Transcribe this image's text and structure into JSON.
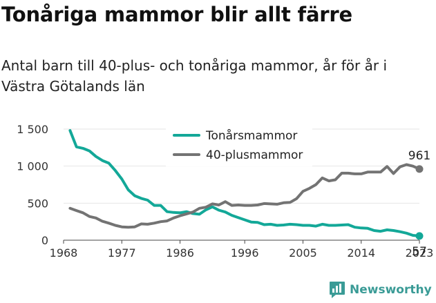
{
  "title": "Tonåriga mammor blir allt färre",
  "subtitle": "Antal barn till 40-plus- och tonåriga mammor, år för år i Västra Götalands län",
  "brand": "Newsworthy",
  "colors": {
    "teen": "#13a898",
    "forty": "#737373",
    "brand": "#3a9b96"
  },
  "chart_data": {
    "type": "line",
    "ylim": [
      0,
      1500
    ],
    "xlim": [
      1968,
      2023
    ],
    "yticks": [
      0,
      500,
      1000,
      1500
    ],
    "ytick_labels": [
      "0",
      "500",
      "1 000",
      "1 500"
    ],
    "xticks": [
      1968,
      1977,
      1986,
      1996,
      2005,
      2014,
      2023
    ],
    "xtick_labels": [
      "1968",
      "1977",
      "1986",
      "1996",
      "2005",
      "2014",
      "2023"
    ],
    "legend_placement": "top-center",
    "x": [
      1969,
      1970,
      1971,
      1972,
      1973,
      1974,
      1975,
      1976,
      1977,
      1978,
      1979,
      1980,
      1981,
      1982,
      1983,
      1984,
      1985,
      1986,
      1987,
      1988,
      1989,
      1990,
      1991,
      1992,
      1993,
      1994,
      1995,
      1996,
      1997,
      1998,
      1999,
      2000,
      2001,
      2002,
      2003,
      2004,
      2005,
      2006,
      2007,
      2008,
      2009,
      2010,
      2011,
      2012,
      2013,
      2014,
      2015,
      2016,
      2017,
      2018,
      2019,
      2020,
      2021,
      2022,
      2023
    ],
    "series": [
      {
        "name": "Tonårsmammor",
        "color_key": "teen",
        "end_label": "57",
        "values": [
          1480,
          1260,
          1240,
          1205,
          1130,
          1075,
          1040,
          940,
          825,
          680,
          600,
          565,
          540,
          470,
          470,
          385,
          375,
          370,
          385,
          360,
          350,
          410,
          450,
          405,
          380,
          335,
          305,
          275,
          245,
          240,
          210,
          215,
          200,
          205,
          215,
          210,
          200,
          200,
          190,
          215,
          200,
          200,
          205,
          210,
          175,
          165,
          160,
          130,
          120,
          140,
          130,
          115,
          95,
          65,
          57
        ]
      },
      {
        "name": "40-plusmammor",
        "color_key": "forty",
        "end_label": "961",
        "values": [
          430,
          400,
          370,
          320,
          300,
          255,
          230,
          200,
          180,
          175,
          180,
          220,
          215,
          230,
          250,
          260,
          300,
          330,
          355,
          380,
          430,
          445,
          490,
          475,
          520,
          470,
          475,
          470,
          470,
          475,
          495,
          490,
          485,
          505,
          510,
          560,
          660,
          700,
          750,
          840,
          800,
          815,
          905,
          905,
          895,
          895,
          920,
          920,
          920,
          995,
          900,
          990,
          1020,
          1000,
          961
        ]
      }
    ]
  }
}
